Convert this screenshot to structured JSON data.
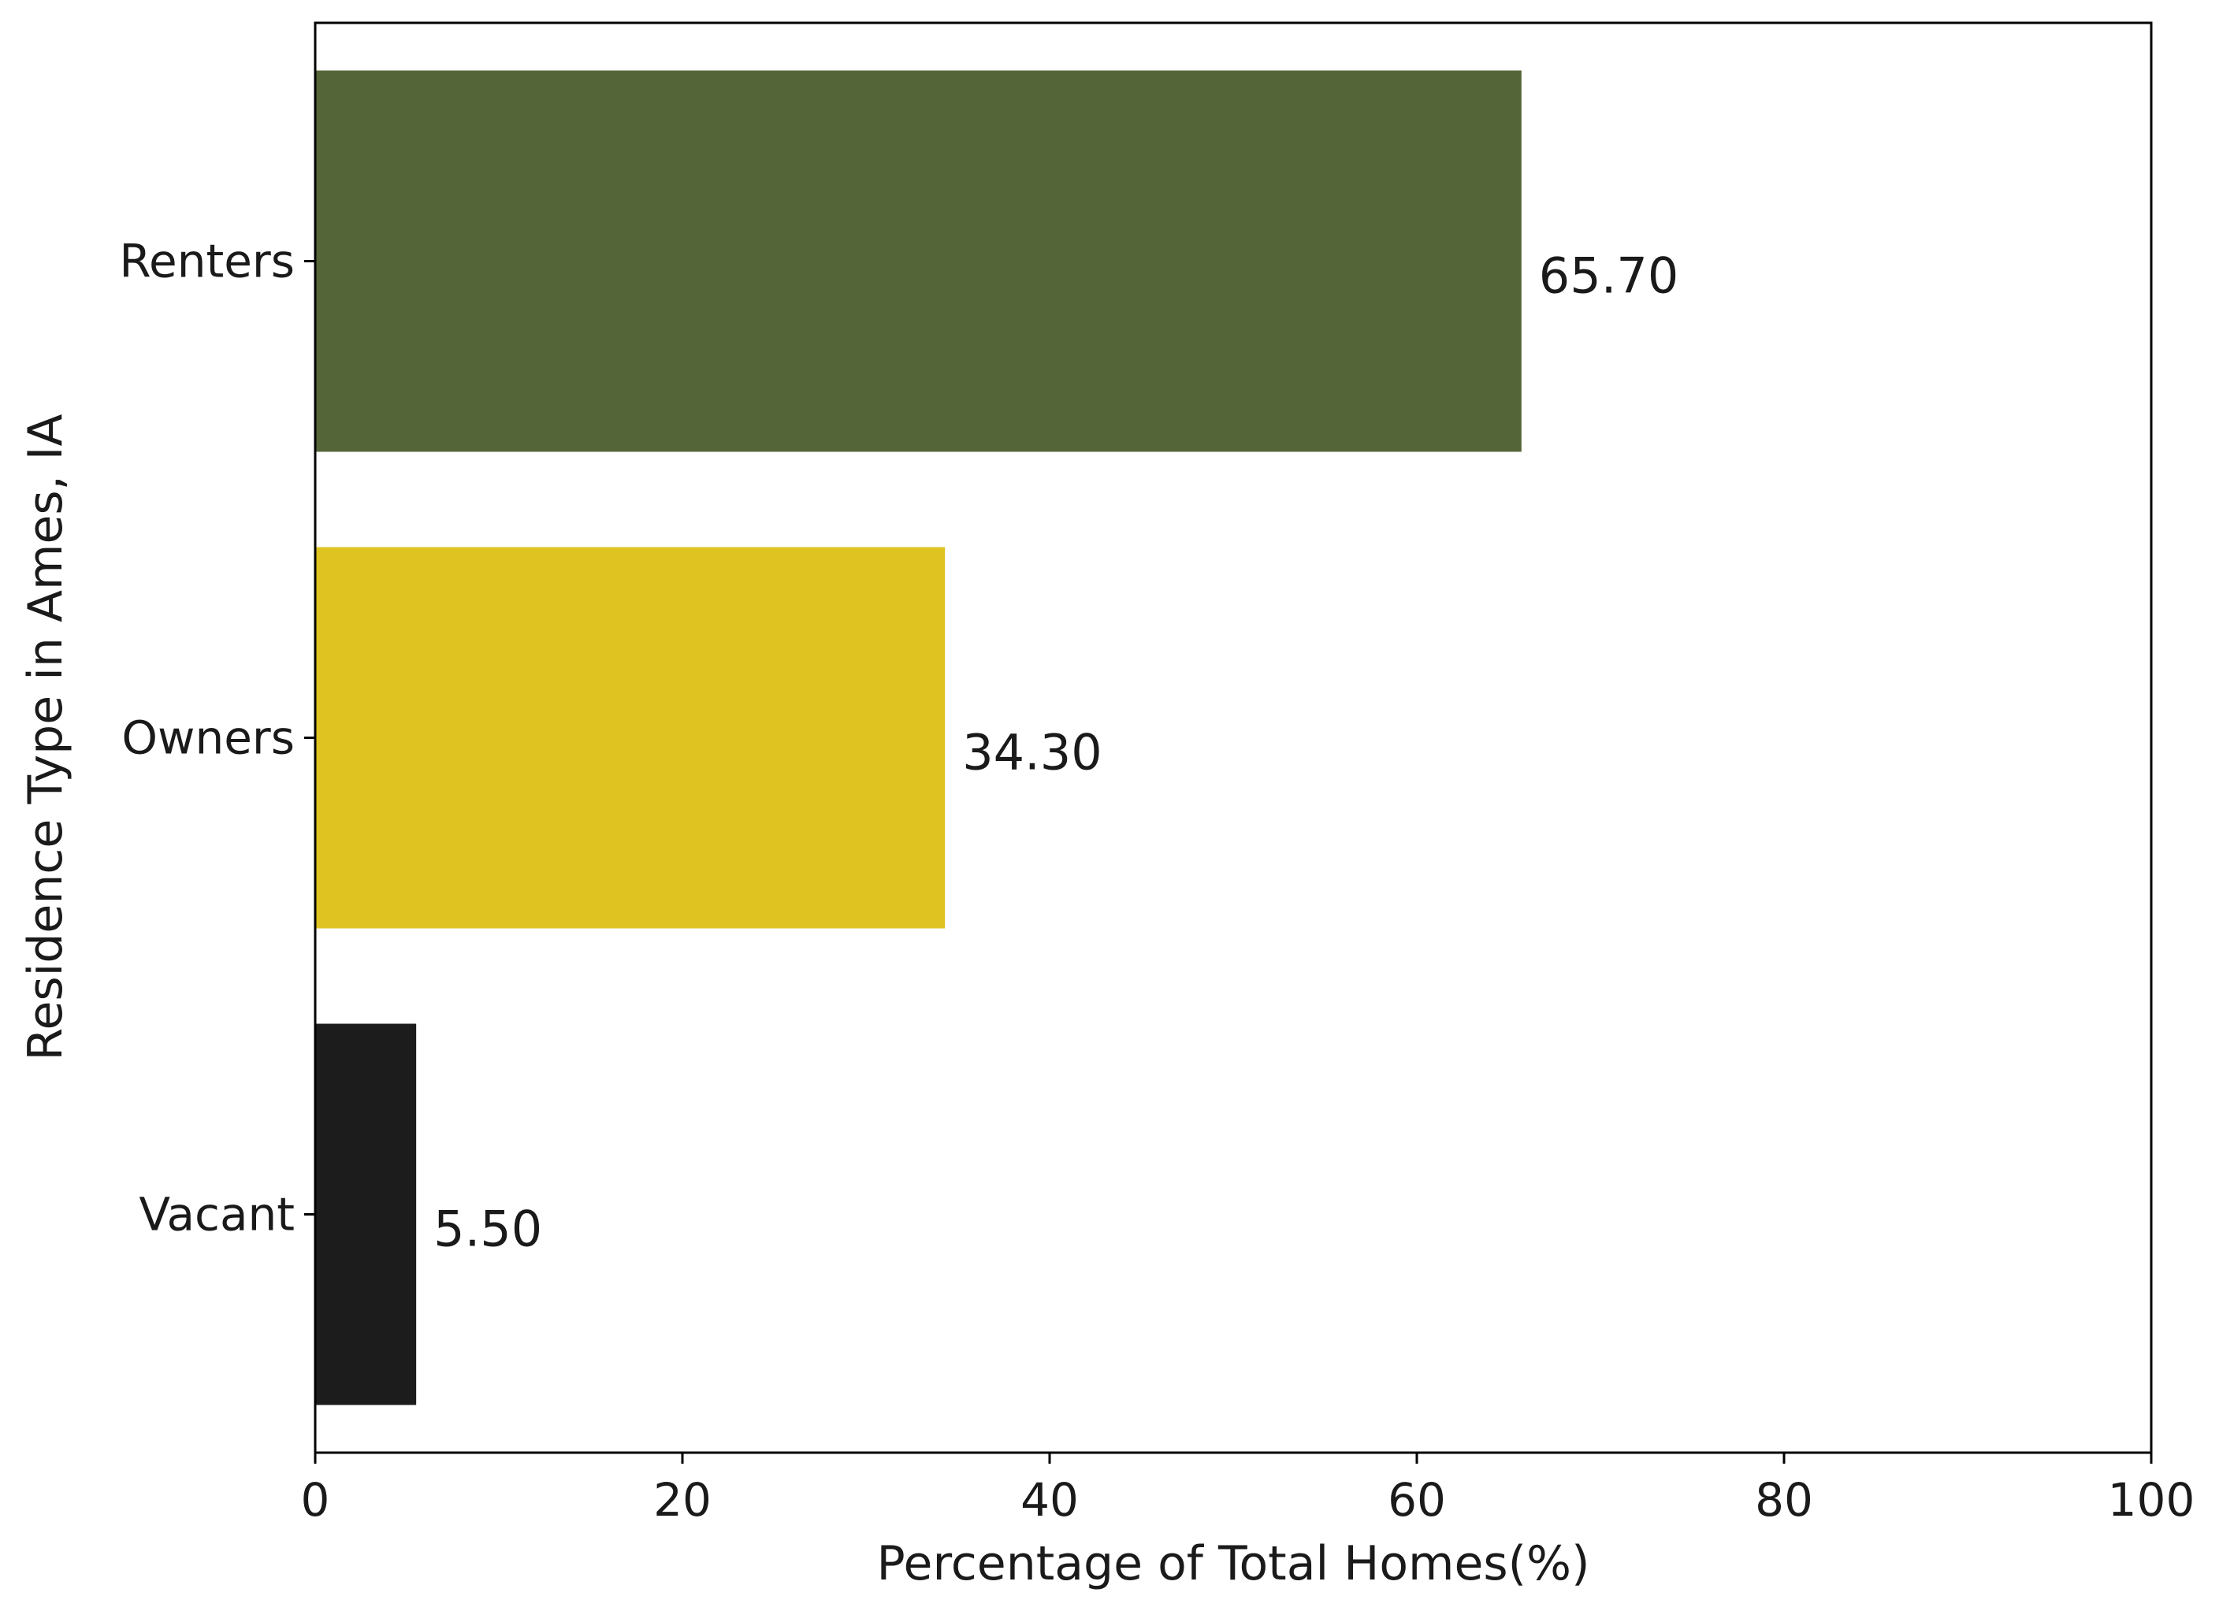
{
  "chart_data": {
    "type": "bar",
    "orientation": "horizontal",
    "categories": [
      "Renters",
      "Owners",
      "Vacant"
    ],
    "values": [
      65.7,
      34.3,
      5.5
    ],
    "value_labels": [
      "65.70",
      "34.30",
      "5.50"
    ],
    "colors": [
      "#546638",
      "#dfc421",
      "#1c1c1c"
    ],
    "title": "",
    "xlabel": "Percentage of Total Homes(%)",
    "ylabel": "Residence Type in Ames, IA",
    "xlim": [
      0,
      100
    ],
    "xticks": [
      0,
      20,
      40,
      60,
      80,
      100
    ],
    "xtick_labels": [
      "0",
      "20",
      "40",
      "60",
      "80",
      "100"
    ],
    "grid": false,
    "legend": "none"
  }
}
